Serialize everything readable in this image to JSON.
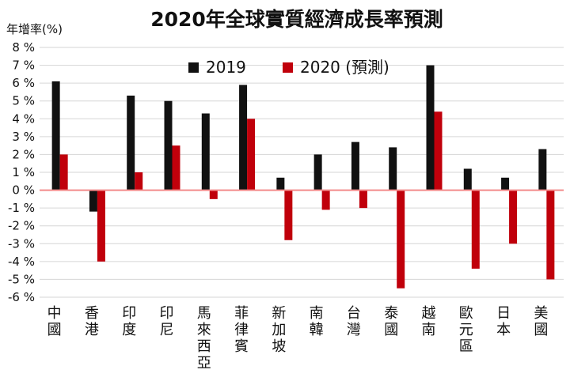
{
  "chart_data": {
    "type": "bar",
    "title": "2020年全球實質經濟成長率預測",
    "ylabel": "年增率(%)",
    "ylim": [
      -6,
      8
    ],
    "yticks": [
      "8 %",
      "7 %",
      "6 %",
      "5 %",
      "4 %",
      "3 %",
      "2 %",
      "1 %",
      "0 %",
      "-1 %",
      "-2 %",
      "-3 %",
      "-4 %",
      "-5 %",
      "-6 %"
    ],
    "categories": [
      "中國",
      "香港",
      "印度",
      "印尼",
      "馬來西亞",
      "菲律賓",
      "新加坡",
      "南韓",
      "台灣",
      "泰國",
      "越南",
      "歐元區",
      "日本",
      "美國"
    ],
    "series": [
      {
        "name": "2019",
        "color": "#111111",
        "values": [
          6.1,
          -1.2,
          5.3,
          5.0,
          4.3,
          5.9,
          0.7,
          2.0,
          2.7,
          2.4,
          7.0,
          1.2,
          0.7,
          2.3
        ]
      },
      {
        "name": "2020 (預測)",
        "color": "#c0000b",
        "values": [
          2.0,
          -4.0,
          1.0,
          2.5,
          -0.5,
          4.0,
          -2.8,
          -1.1,
          -1.0,
          -5.5,
          4.4,
          -4.4,
          -3.0,
          -5.0
        ]
      }
    ],
    "zero_line_color": "#f28a8a",
    "grid": true,
    "legend": "top-center"
  }
}
